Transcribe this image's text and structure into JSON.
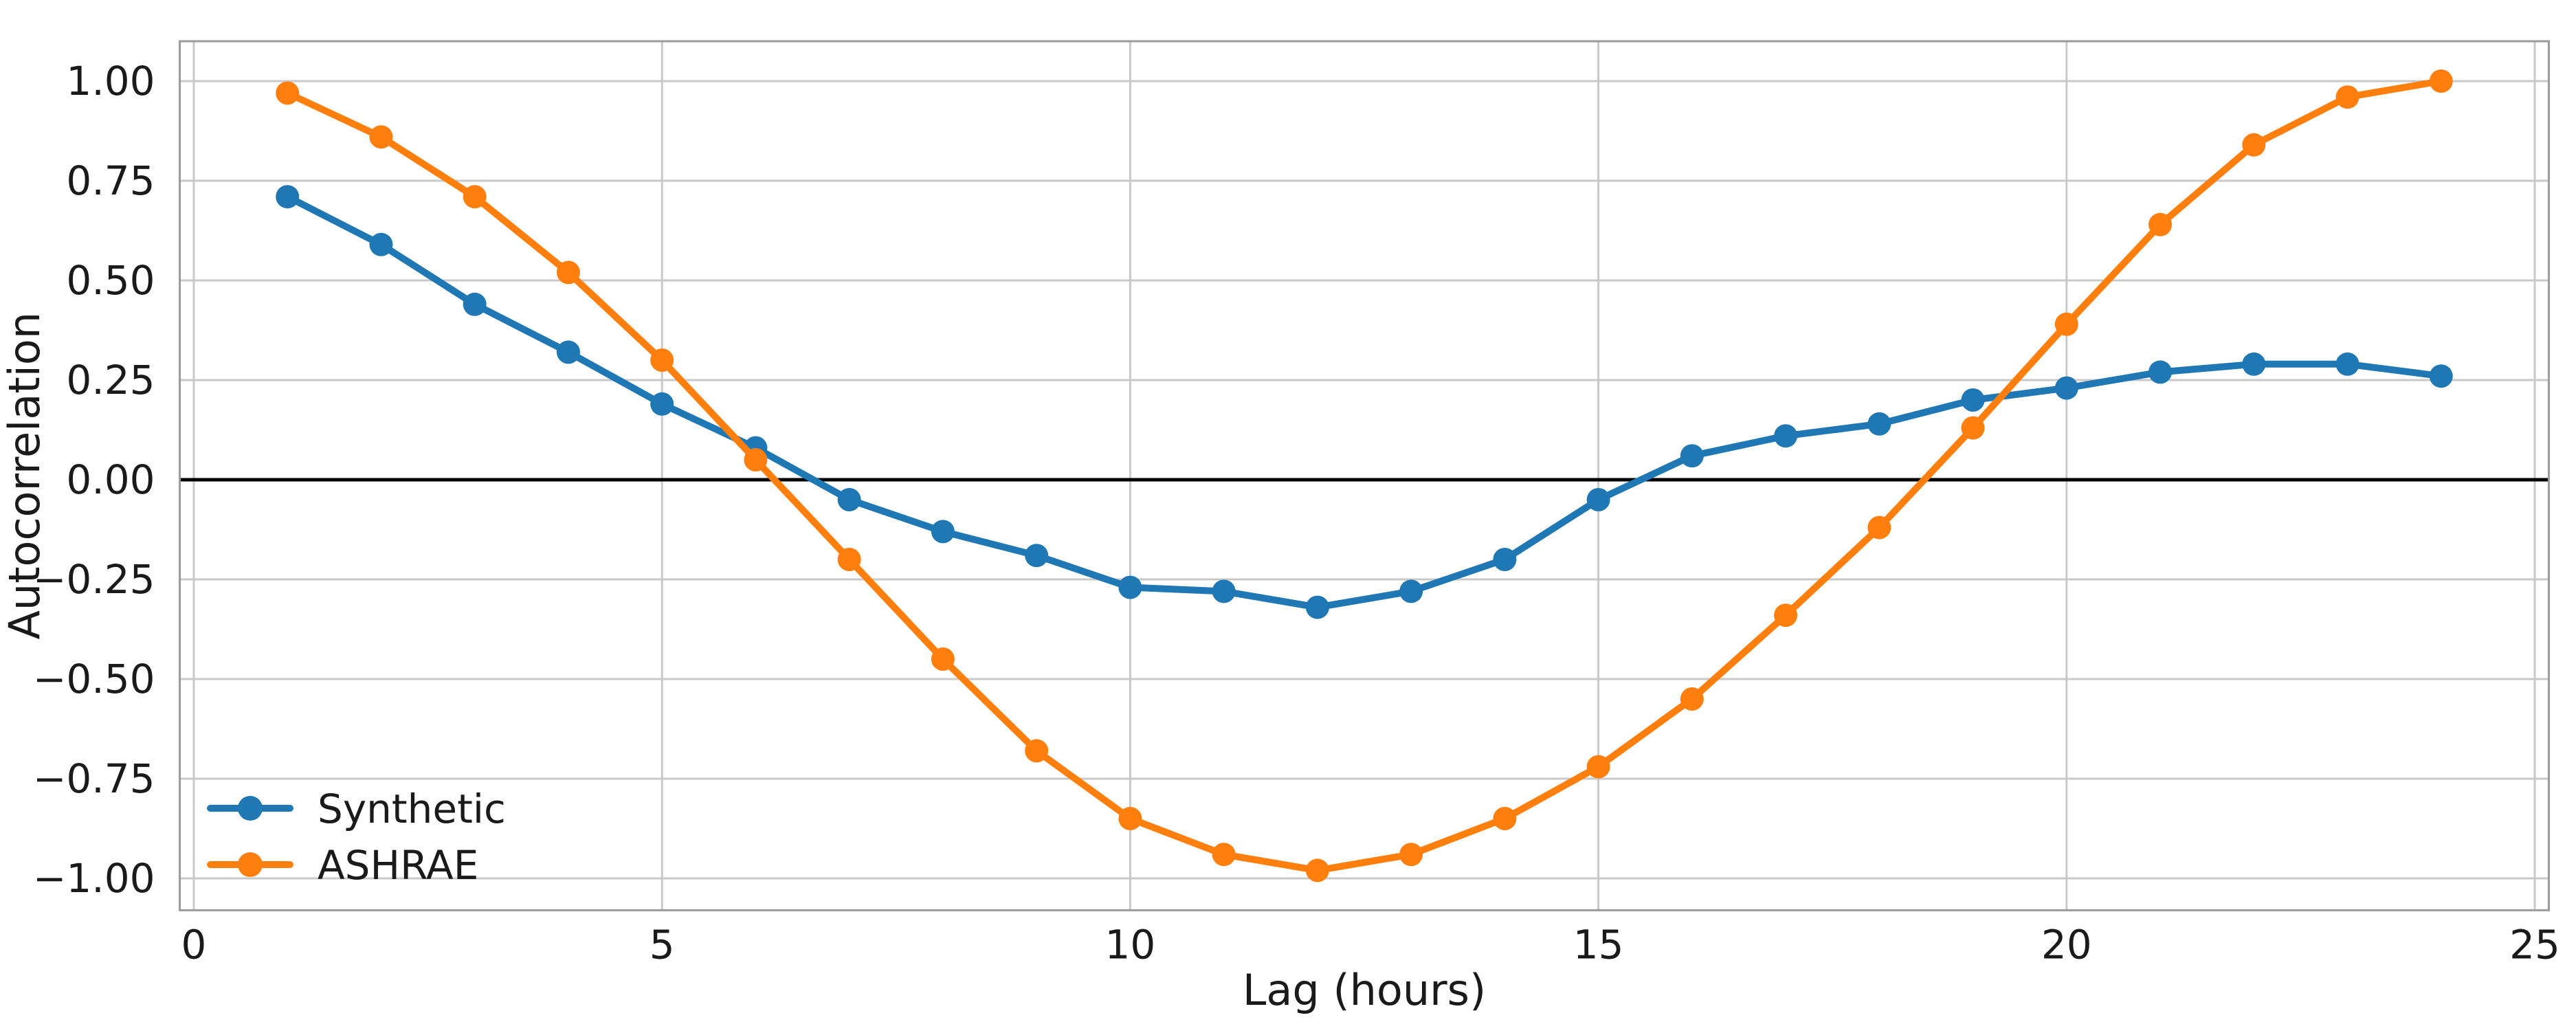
{
  "chart_data": {
    "type": "line",
    "title": "",
    "xlabel": "Lag (hours)",
    "ylabel": "Autocorrelation",
    "x": [
      1,
      2,
      3,
      4,
      5,
      6,
      7,
      8,
      9,
      10,
      11,
      12,
      13,
      14,
      15,
      16,
      17,
      18,
      19,
      20,
      21,
      22,
      23,
      24
    ],
    "series": [
      {
        "name": "Synthetic",
        "color": "#1f77b4",
        "values": [
          0.71,
          0.59,
          0.44,
          0.32,
          0.19,
          0.08,
          -0.05,
          -0.13,
          -0.19,
          -0.27,
          -0.28,
          -0.32,
          -0.28,
          -0.2,
          -0.05,
          0.06,
          0.11,
          0.14,
          0.2,
          0.23,
          0.27,
          0.29,
          0.29,
          0.26
        ]
      },
      {
        "name": "ASHRAE",
        "color": "#ff7f0e",
        "values": [
          0.97,
          0.86,
          0.71,
          0.52,
          0.3,
          0.05,
          -0.2,
          -0.45,
          -0.68,
          -0.85,
          -0.94,
          -0.98,
          -0.94,
          -0.85,
          -0.72,
          -0.55,
          -0.34,
          -0.12,
          0.13,
          0.39,
          0.64,
          0.84,
          0.96,
          1.0
        ]
      }
    ],
    "xlim": [
      -0.15,
      25.15
    ],
    "ylim": [
      -1.08,
      1.1
    ],
    "x_ticks": [
      0,
      5,
      10,
      15,
      20,
      25
    ],
    "y_ticks": [
      -1.0,
      -0.75,
      -0.5,
      -0.25,
      0.0,
      0.25,
      0.5,
      0.75,
      1.0
    ],
    "grid": true,
    "zero_line": true,
    "legend_position": "lower left",
    "marker": "circle"
  },
  "axes": {
    "x_label": "Lag (hours)",
    "y_label": "Autocorrelation",
    "x_tick_labels": [
      "0",
      "5",
      "10",
      "15",
      "20",
      "25"
    ],
    "y_tick_labels": [
      "−1.00",
      "−0.75",
      "−0.50",
      "−0.25",
      "0.00",
      "0.25",
      "0.50",
      "0.75",
      "1.00"
    ]
  },
  "legend": {
    "items": [
      {
        "label": "Synthetic",
        "color": "#1f77b4"
      },
      {
        "label": "ASHRAE",
        "color": "#ff7f0e"
      }
    ]
  },
  "colors": {
    "synthetic": "#1f77b4",
    "ashrae": "#ff7f0e",
    "grid": "#c9c9c9",
    "spine": "#9b9b9b",
    "zero_line": "#000000",
    "text": "#1a1a1a",
    "background": "#ffffff"
  }
}
